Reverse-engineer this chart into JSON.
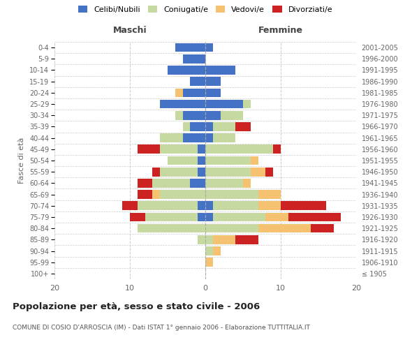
{
  "age_groups": [
    "100+",
    "95-99",
    "90-94",
    "85-89",
    "80-84",
    "75-79",
    "70-74",
    "65-69",
    "60-64",
    "55-59",
    "50-54",
    "45-49",
    "40-44",
    "35-39",
    "30-34",
    "25-29",
    "20-24",
    "15-19",
    "10-14",
    "5-9",
    "0-4"
  ],
  "birth_years": [
    "≤ 1905",
    "1906-1910",
    "1911-1915",
    "1916-1920",
    "1921-1925",
    "1926-1930",
    "1931-1935",
    "1936-1940",
    "1941-1945",
    "1946-1950",
    "1951-1955",
    "1956-1960",
    "1961-1965",
    "1966-1970",
    "1971-1975",
    "1976-1980",
    "1981-1985",
    "1986-1990",
    "1991-1995",
    "1996-2000",
    "2001-2005"
  ],
  "maschi": {
    "celibi": [
      0,
      0,
      0,
      0,
      0,
      1,
      1,
      0,
      2,
      1,
      1,
      1,
      3,
      2,
      3,
      6,
      3,
      2,
      5,
      3,
      4
    ],
    "coniugati": [
      0,
      0,
      0,
      1,
      9,
      7,
      8,
      6,
      5,
      5,
      4,
      5,
      3,
      1,
      1,
      0,
      0,
      0,
      0,
      0,
      0
    ],
    "vedovi": [
      0,
      0,
      0,
      0,
      0,
      0,
      0,
      1,
      0,
      0,
      0,
      0,
      0,
      0,
      0,
      0,
      1,
      0,
      0,
      0,
      0
    ],
    "divorziati": [
      0,
      0,
      0,
      0,
      0,
      2,
      2,
      2,
      2,
      1,
      0,
      3,
      0,
      0,
      0,
      0,
      0,
      0,
      0,
      0,
      0
    ]
  },
  "femmine": {
    "nubili": [
      0,
      0,
      0,
      0,
      0,
      1,
      1,
      0,
      0,
      0,
      0,
      0,
      1,
      1,
      2,
      5,
      2,
      2,
      4,
      0,
      1
    ],
    "coniugate": [
      0,
      0,
      1,
      1,
      7,
      7,
      6,
      7,
      5,
      6,
      6,
      9,
      3,
      3,
      3,
      1,
      0,
      0,
      0,
      0,
      0
    ],
    "vedove": [
      0,
      1,
      1,
      3,
      7,
      3,
      3,
      3,
      1,
      2,
      1,
      0,
      0,
      0,
      0,
      0,
      0,
      0,
      0,
      0,
      0
    ],
    "divorziate": [
      0,
      0,
      0,
      3,
      3,
      7,
      6,
      0,
      0,
      1,
      0,
      1,
      0,
      2,
      0,
      0,
      0,
      0,
      0,
      0,
      0
    ]
  },
  "color_celibi": "#4472c4",
  "color_coniugati": "#c5d9a0",
  "color_vedovi": "#f4c270",
  "color_divorziati": "#cc2222",
  "title": "Popolazione per età, sesso e stato civile - 2006",
  "subtitle": "COMUNE DI COSIO D'ARROSCIA (IM) - Dati ISTAT 1° gennaio 2006 - Elaborazione TUTTITALIA.IT",
  "xlabel_left": "Maschi",
  "xlabel_right": "Femmine",
  "ylabel_left": "Fasce di età",
  "xlim": 20,
  "background_color": "#ffffff",
  "grid_color": "#cccccc"
}
